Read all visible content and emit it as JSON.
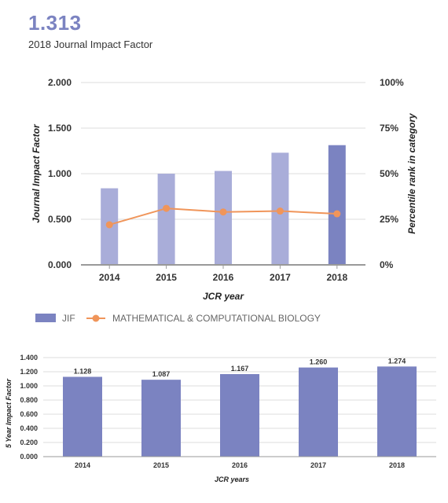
{
  "header": {
    "value": "1.313",
    "subtitle": "2018 Journal Impact Factor"
  },
  "colors": {
    "bar_light": "#a9add9",
    "bar_dark": "#7b83c1",
    "line": "#f0955a",
    "grid": "#dddddd",
    "axis": "#999999"
  },
  "chart_data": [
    {
      "type": "bar",
      "categories": [
        "2014",
        "2015",
        "2016",
        "2017",
        "2018"
      ],
      "series": [
        {
          "name": "JIF",
          "axis": "left",
          "values": [
            0.84,
            1.0,
            1.03,
            1.23,
            1.313
          ]
        },
        {
          "name": "MATHEMATICAL & COMPUTATIONAL BIOLOGY",
          "type": "line",
          "axis": "right",
          "values": [
            22,
            31,
            29,
            29.5,
            28
          ]
        }
      ],
      "xlabel": "JCR year",
      "ylabel": "Journal Impact Factor",
      "ylabel_right": "Percentile rank in category",
      "ylim": [
        0,
        2
      ],
      "ylim_right": [
        0,
        100
      ],
      "yticks": [
        "0.000",
        "0.500",
        "1.000",
        "1.500",
        "2.000"
      ],
      "yticks_right": [
        "0%",
        "25%",
        "50%",
        "75%",
        "100%"
      ],
      "grid": true,
      "legend": "bottom-left"
    },
    {
      "type": "bar",
      "categories": [
        "2014",
        "2015",
        "2016",
        "2017",
        "2018"
      ],
      "values": [
        1.128,
        1.087,
        1.167,
        1.26,
        1.274
      ],
      "data_labels": [
        "1.128",
        "1.087",
        "1.167",
        "1.260",
        "1.274"
      ],
      "xlabel": "JCR years",
      "ylabel": "5 Year Impact Factor",
      "ylim": [
        0,
        1.4
      ],
      "yticks": [
        "0.000",
        "0.200",
        "0.400",
        "0.600",
        "0.800",
        "1.000",
        "1.200",
        "1.400"
      ],
      "grid": true
    }
  ]
}
